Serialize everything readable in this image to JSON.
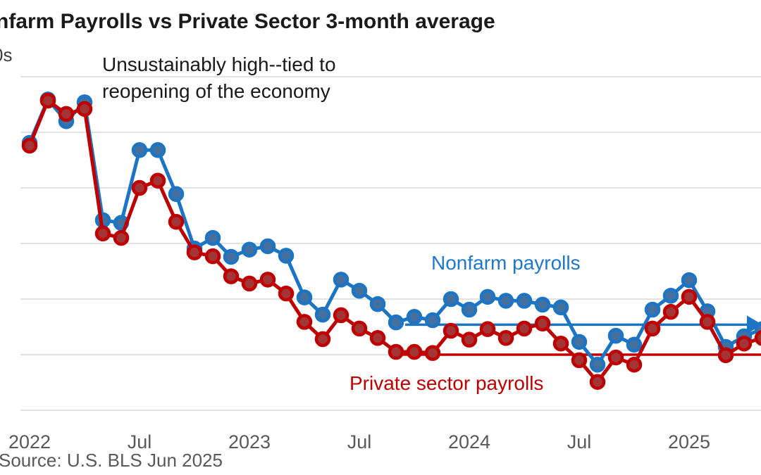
{
  "title": "nfarm Payrolls vs Private Sector 3-month  average",
  "y_axis_units_fragment": "0s",
  "annotation": {
    "line1": "Unsustainably high--tied to",
    "line2": "reopening of the economy"
  },
  "labels": {
    "nonfarm": "Nonfarm payrolls",
    "private": "Private sector payrolls"
  },
  "source": "Source: U.S. BLS Jun 2025",
  "colors": {
    "nonfarm_line": "#1B74C4",
    "nonfarm_marker_fill": "#44709F",
    "nonfarm_label": "#1E78CC",
    "private_line": "#C00000",
    "private_marker_fill": "#A23535",
    "private_label": "#C00000",
    "gridline": "#D9D9D9",
    "axis_text": "#595959",
    "title_text": "#1A1A1A",
    "background": "#FFFFFF"
  },
  "chart_data": {
    "type": "line",
    "title_visible_fragment": "nfarm Payrolls vs Private Sector 3-month  average",
    "y_units_visible_fragment": "0s",
    "ylim": [
      0,
      620
    ],
    "gridline_values": [
      0,
      100,
      200,
      300,
      400,
      500,
      600
    ],
    "grid": "horizontal",
    "legend_position": "inline-labels",
    "x": [
      "Jan 2022",
      "Feb 2022",
      "Mar 2022",
      "Apr 2022",
      "May 2022",
      "Jun 2022",
      "Jul 2022",
      "Aug 2022",
      "Sep 2022",
      "Oct 2022",
      "Nov 2022",
      "Dec 2022",
      "Jan 2023",
      "Feb 2023",
      "Mar 2023",
      "Apr 2023",
      "May 2023",
      "Jun 2023",
      "Jul 2023",
      "Aug 2023",
      "Sep 2023",
      "Oct 2023",
      "Nov 2023",
      "Dec 2023",
      "Jan 2024",
      "Feb 2024",
      "Mar 2024",
      "Apr 2024",
      "May 2024",
      "Jun 2024",
      "Jul 2024",
      "Aug 2024",
      "Sep 2024",
      "Oct 2024",
      "Nov 2024",
      "Dec 2024",
      "Jan 2025",
      "Feb 2025",
      "Mar 2025",
      "Apr 2025",
      "May 2025"
    ],
    "x_ticks": [
      {
        "label": "2022",
        "month_index": 0
      },
      {
        "label": "Jul",
        "month_index": 6
      },
      {
        "label": "2023",
        "month_index": 12
      },
      {
        "label": "Jul",
        "month_index": 18
      },
      {
        "label": "2024",
        "month_index": 24
      },
      {
        "label": "Jul",
        "month_index": 30
      },
      {
        "label": "2025",
        "month_index": 36
      }
    ],
    "series": [
      {
        "key": "nonfarm",
        "name": "Nonfarm payrolls",
        "line_color": "#1B74C4",
        "marker_fill": "#44709F",
        "values": [
          481,
          559,
          520,
          554,
          342,
          337,
          468,
          468,
          389,
          291,
          310,
          276,
          289,
          295,
          278,
          203,
          172,
          235,
          215,
          191,
          158,
          168,
          162,
          200,
          181,
          204,
          197,
          197,
          190,
          185,
          123,
          82,
          134,
          118,
          181,
          206,
          234,
          178,
          114,
          133,
          146
        ]
      },
      {
        "key": "private",
        "name": "Private sector payrolls",
        "line_color": "#C00000",
        "marker_fill": "#A23535",
        "values": [
          476,
          557,
          533,
          542,
          318,
          310,
          400,
          413,
          339,
          284,
          277,
          241,
          228,
          235,
          210,
          159,
          128,
          171,
          147,
          130,
          105,
          105,
          103,
          143,
          127,
          146,
          130,
          147,
          156,
          120,
          90,
          51,
          95,
          82,
          147,
          177,
          204,
          159,
          99,
          120,
          130
        ]
      }
    ],
    "reference_lines": [
      {
        "series": "nonfarm",
        "value": 154,
        "start_month_index": 20.5,
        "arrow": true
      },
      {
        "series": "private",
        "value": 100,
        "start_month_index": 19.9,
        "arrow": false
      }
    ],
    "annotation_text": "Unsustainably high--tied to reopening of the economy"
  }
}
